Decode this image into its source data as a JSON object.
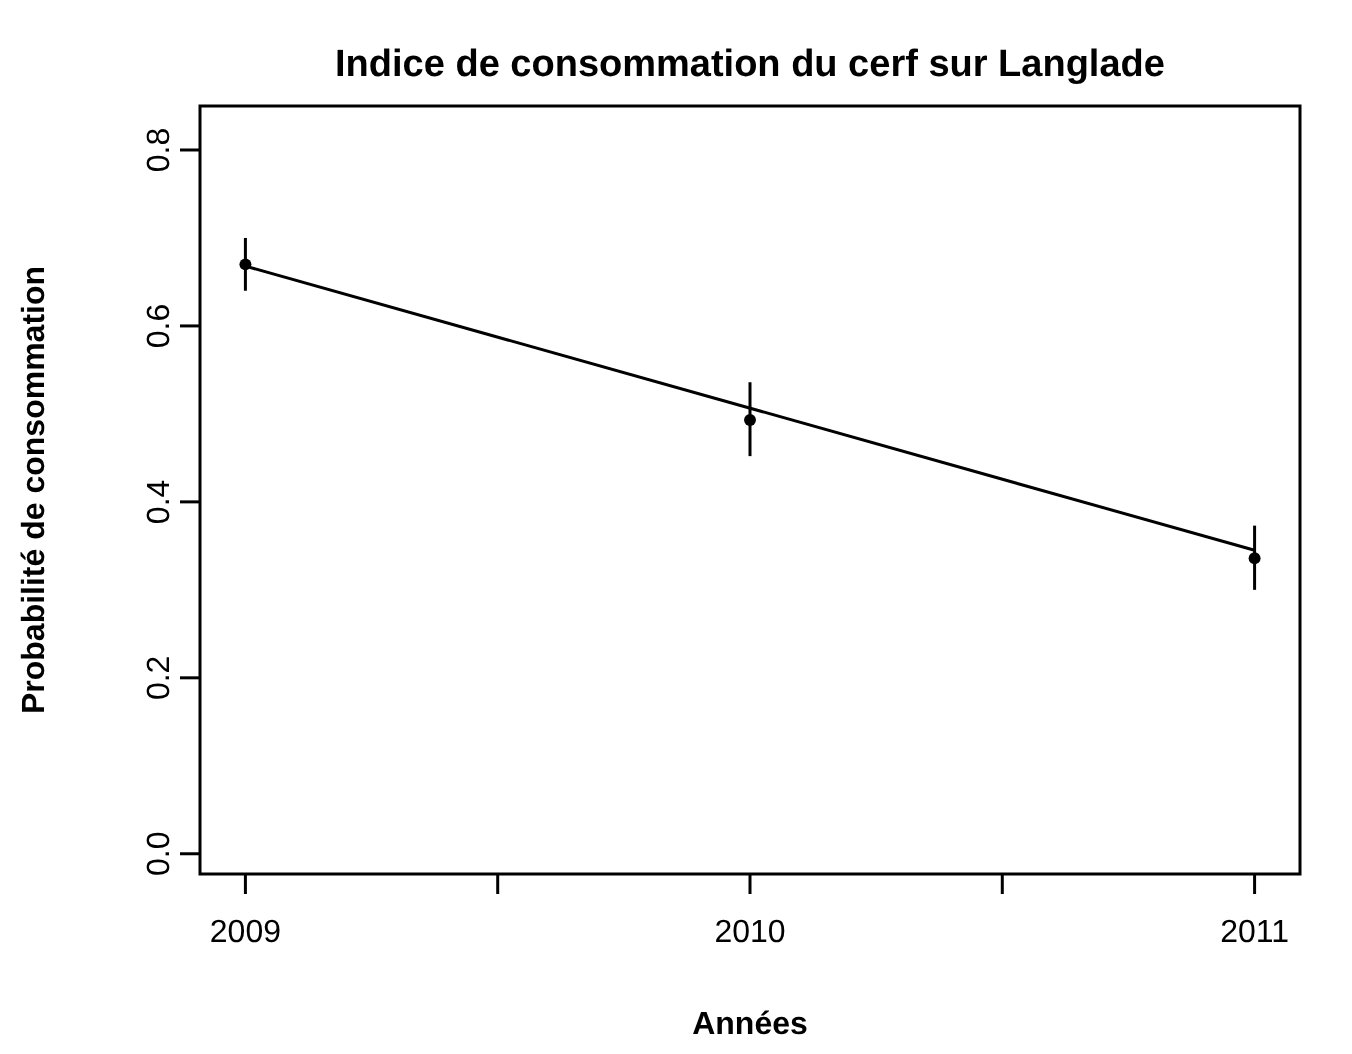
{
  "chart_data": {
    "type": "scatter",
    "title": "Indice de consommation du cerf sur Langlade",
    "xlabel": "Années",
    "ylabel": "Probabilité de consommation",
    "x": [
      2009,
      2010,
      2011
    ],
    "series": [
      {
        "color": "#000000",
        "marker": "circle",
        "values": [
          0.67,
          0.493,
          0.336
        ],
        "errors": [
          [
            0.64,
            0.7
          ],
          [
            0.452,
            0.536
          ],
          [
            0.3,
            0.373
          ]
        ]
      },
      {
        "type": "line",
        "color": "#000000",
        "line_style": "solid",
        "x": [
          2009,
          2011
        ],
        "values": [
          0.668,
          0.345
        ]
      }
    ],
    "xlim": [
      2008.91,
      2011.09
    ],
    "xticks": [
      2009,
      {
        "value": 2009.5,
        "label": null
      },
      2010,
      {
        "value": 2010.5,
        "label": null
      },
      2011
    ],
    "ylim": [
      -0.023,
      0.85
    ],
    "yticks": [
      {
        "value": 0,
        "label": "0.0"
      },
      0.2,
      0.4,
      0.6,
      0.8
    ]
  }
}
